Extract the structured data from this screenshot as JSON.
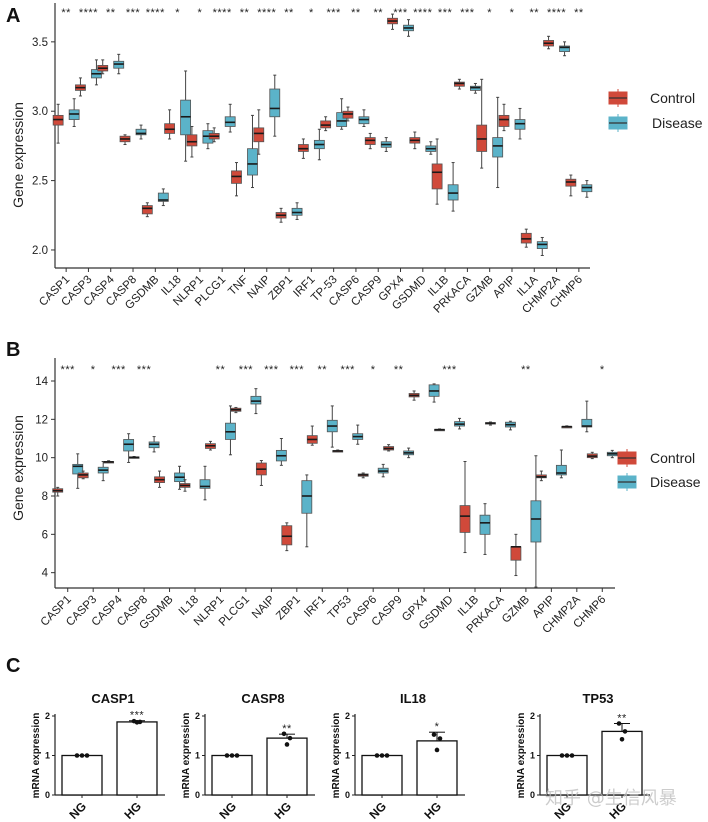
{
  "colors": {
    "control": "#d0493a",
    "disease": "#5bb3c9",
    "median": "#1a1a1a",
    "whisker": "#444444"
  },
  "legend": {
    "control_label": "Control",
    "disease_label": "Disease"
  },
  "watermark": "知乎 @生信风暴",
  "chart_data": [
    {
      "panel": "A",
      "type": "boxplot",
      "ylabel": "Gene expression",
      "ylim": [
        1.87,
        3.78
      ],
      "yticks": [
        2.0,
        2.5,
        3.0,
        3.5
      ],
      "ytick_labels": [
        "2.0",
        "2.5",
        "3.0",
        "3.5"
      ],
      "legend_position": "right",
      "series_names": [
        "Control",
        "Disease"
      ],
      "categories": [
        "CASP1",
        "CASP3",
        "CASP4",
        "CASP8",
        "GSDMB",
        "IL18",
        "NLRP1",
        "PLCG1",
        "TNF",
        "NAIP",
        "ZBP1",
        "IRF1",
        "TP-53",
        "CASP6",
        "CASP9",
        "GPX4",
        "GSDMD",
        "IL1B",
        "PRKACA",
        "GZMB",
        "APIP",
        "IL1A",
        "CHMP2A",
        "CHMP6"
      ],
      "significance": [
        "**",
        "****",
        "**",
        "***",
        "****",
        "*",
        "*",
        "****",
        "**",
        "****",
        "**",
        "*",
        "***",
        "**",
        "**",
        "***",
        "****",
        "***",
        "***",
        "*",
        "*",
        "**",
        "****",
        "**"
      ],
      "control": [
        {
          "min": 2.77,
          "q1": 2.9,
          "median": 2.94,
          "q3": 2.97,
          "max": 3.05
        },
        {
          "min": 3.11,
          "q1": 3.15,
          "median": 3.17,
          "q3": 3.19,
          "max": 3.24
        },
        {
          "min": 3.27,
          "q1": 3.29,
          "median": 3.31,
          "q3": 3.33,
          "max": 3.37
        },
        {
          "min": 2.76,
          "q1": 2.78,
          "median": 2.8,
          "q3": 2.82,
          "max": 2.83
        },
        {
          "min": 2.24,
          "q1": 2.26,
          "median": 2.3,
          "q3": 2.32,
          "max": 2.34
        },
        {
          "min": 2.8,
          "q1": 2.84,
          "median": 2.87,
          "q3": 2.91,
          "max": 3.01
        },
        {
          "min": 2.67,
          "q1": 2.75,
          "median": 2.78,
          "q3": 2.83,
          "max": 2.89
        },
        {
          "min": 2.78,
          "q1": 2.8,
          "median": 2.82,
          "q3": 2.84,
          "max": 2.88
        },
        {
          "min": 2.39,
          "q1": 2.48,
          "median": 2.53,
          "q3": 2.57,
          "max": 2.63
        },
        {
          "min": 2.69,
          "q1": 2.78,
          "median": 2.84,
          "q3": 2.88,
          "max": 3.01
        },
        {
          "min": 2.2,
          "q1": 2.23,
          "median": 2.25,
          "q3": 2.27,
          "max": 2.3
        },
        {
          "min": 2.66,
          "q1": 2.71,
          "median": 2.73,
          "q3": 2.76,
          "max": 2.8
        },
        {
          "min": 2.86,
          "q1": 2.88,
          "median": 2.9,
          "q3": 2.93,
          "max": 2.96
        },
        {
          "min": 2.93,
          "q1": 2.95,
          "median": 2.98,
          "q3": 3.0,
          "max": 3.03
        },
        {
          "min": 2.73,
          "q1": 2.76,
          "median": 2.79,
          "q3": 2.81,
          "max": 2.84
        },
        {
          "min": 3.59,
          "q1": 3.63,
          "median": 3.65,
          "q3": 3.67,
          "max": 3.7
        },
        {
          "min": 2.73,
          "q1": 2.77,
          "median": 2.79,
          "q3": 2.81,
          "max": 2.85
        },
        {
          "min": 2.33,
          "q1": 2.44,
          "median": 2.56,
          "q3": 2.62,
          "max": 2.8
        },
        {
          "min": 3.16,
          "q1": 3.18,
          "median": 3.2,
          "q3": 3.21,
          "max": 3.23
        },
        {
          "min": 2.59,
          "q1": 2.71,
          "median": 2.8,
          "q3": 2.9,
          "max": 3.23
        },
        {
          "min": 2.86,
          "q1": 2.89,
          "median": 2.94,
          "q3": 2.97,
          "max": 3.05
        },
        {
          "min": 2.02,
          "q1": 2.05,
          "median": 2.08,
          "q3": 2.12,
          "max": 2.15
        },
        {
          "min": 3.45,
          "q1": 3.47,
          "median": 3.49,
          "q3": 3.51,
          "max": 3.54
        },
        {
          "min": 2.39,
          "q1": 2.46,
          "median": 2.49,
          "q3": 2.51,
          "max": 2.54
        }
      ],
      "disease": [
        {
          "min": 2.89,
          "q1": 2.94,
          "median": 2.98,
          "q3": 3.01,
          "max": 3.09
        },
        {
          "min": 3.19,
          "q1": 3.24,
          "median": 3.27,
          "q3": 3.3,
          "max": 3.37
        },
        {
          "min": 3.27,
          "q1": 3.31,
          "median": 3.34,
          "q3": 3.36,
          "max": 3.41
        },
        {
          "min": 2.8,
          "q1": 2.83,
          "median": 2.84,
          "q3": 2.87,
          "max": 2.9
        },
        {
          "min": 2.32,
          "q1": 2.35,
          "median": 2.36,
          "q3": 2.41,
          "max": 2.44
        },
        {
          "min": 2.64,
          "q1": 2.83,
          "median": 2.96,
          "q3": 3.08,
          "max": 3.29
        },
        {
          "min": 2.73,
          "q1": 2.77,
          "median": 2.82,
          "q3": 2.86,
          "max": 2.91
        },
        {
          "min": 2.85,
          "q1": 2.89,
          "median": 2.92,
          "q3": 2.96,
          "max": 3.05
        },
        {
          "min": 2.45,
          "q1": 2.54,
          "median": 2.62,
          "q3": 2.73,
          "max": 2.97
        },
        {
          "min": 2.82,
          "q1": 2.96,
          "median": 3.02,
          "q3": 3.16,
          "max": 3.26
        },
        {
          "min": 2.22,
          "q1": 2.25,
          "median": 2.27,
          "q3": 2.3,
          "max": 2.34
        },
        {
          "min": 2.65,
          "q1": 2.73,
          "median": 2.76,
          "q3": 2.79,
          "max": 2.87
        },
        {
          "min": 2.87,
          "q1": 2.89,
          "median": 2.93,
          "q3": 2.99,
          "max": 3.09
        },
        {
          "min": 2.89,
          "q1": 2.91,
          "median": 2.94,
          "q3": 2.96,
          "max": 3.01
        },
        {
          "min": 2.71,
          "q1": 2.74,
          "median": 2.76,
          "q3": 2.78,
          "max": 2.81
        },
        {
          "min": 3.54,
          "q1": 3.58,
          "median": 3.6,
          "q3": 3.62,
          "max": 3.66
        },
        {
          "min": 2.69,
          "q1": 2.71,
          "median": 2.73,
          "q3": 2.75,
          "max": 2.78
        },
        {
          "min": 2.28,
          "q1": 2.36,
          "median": 2.41,
          "q3": 2.47,
          "max": 2.63
        },
        {
          "min": 3.13,
          "q1": 3.15,
          "median": 3.17,
          "q3": 3.18,
          "max": 3.2
        },
        {
          "min": 2.45,
          "q1": 2.67,
          "median": 2.75,
          "q3": 2.81,
          "max": 3.1
        },
        {
          "min": 2.8,
          "q1": 2.87,
          "median": 2.91,
          "q3": 2.94,
          "max": 3.02
        },
        {
          "min": 1.96,
          "q1": 2.01,
          "median": 2.04,
          "q3": 2.06,
          "max": 2.09
        },
        {
          "min": 3.4,
          "q1": 3.43,
          "median": 3.46,
          "q3": 3.47,
          "max": 3.5
        },
        {
          "min": 2.38,
          "q1": 2.42,
          "median": 2.45,
          "q3": 2.47,
          "max": 2.5
        }
      ]
    },
    {
      "panel": "B",
      "type": "boxplot",
      "ylabel": "Gene expression",
      "ylim": [
        3.2,
        15.2
      ],
      "yticks": [
        4,
        6,
        8,
        10,
        12,
        14
      ],
      "ytick_labels": [
        "4",
        "6",
        "8",
        "10",
        "12",
        "14"
      ],
      "legend_position": "right",
      "series_names": [
        "Control",
        "Disease"
      ],
      "categories": [
        "CASP1",
        "CASP3",
        "CASP4",
        "CASP8",
        "GSDMB",
        "IL18",
        "NLRP1",
        "PLCG1",
        "NAIP",
        "ZBP1",
        "IRF1",
        "TP53",
        "CASP6",
        "CASP9",
        "GPX4",
        "GSDMD",
        "IL1B",
        "PRKACA",
        "GZMB",
        "APIP",
        "CHMP2A",
        "CHMP6"
      ],
      "significance": [
        "***",
        "*",
        "***",
        "***",
        "",
        "",
        "**",
        "***",
        "***",
        "***",
        "**",
        "***",
        "*",
        "**",
        "",
        "***",
        "",
        "",
        "**",
        "",
        "",
        "*"
      ],
      "control": [
        {
          "min": 8.0,
          "q1": 8.2,
          "median": 8.28,
          "q3": 8.38,
          "max": 8.45
        },
        {
          "min": 8.9,
          "q1": 8.95,
          "median": 9.1,
          "q3": 9.2,
          "max": 9.3
        },
        {
          "min": 9.74,
          "q1": 9.76,
          "median": 9.78,
          "q3": 9.8,
          "max": 9.84
        },
        {
          "min": 9.98,
          "q1": 10.0,
          "median": 10.02,
          "q3": 10.04,
          "max": 10.06
        },
        {
          "min": 8.45,
          "q1": 8.7,
          "median": 8.85,
          "q3": 9.0,
          "max": 9.3
        },
        {
          "min": 8.25,
          "q1": 8.45,
          "median": 8.55,
          "q3": 8.65,
          "max": 8.85
        },
        {
          "min": 10.4,
          "q1": 10.48,
          "median": 10.62,
          "q3": 10.73,
          "max": 10.85
        },
        {
          "min": 12.35,
          "q1": 12.42,
          "median": 12.5,
          "q3": 12.58,
          "max": 12.62
        },
        {
          "min": 8.55,
          "q1": 9.1,
          "median": 9.4,
          "q3": 9.72,
          "max": 9.85
        },
        {
          "min": 5.15,
          "q1": 5.45,
          "median": 5.9,
          "q3": 6.45,
          "max": 6.6
        },
        {
          "min": 10.65,
          "q1": 10.75,
          "median": 10.95,
          "q3": 11.15,
          "max": 11.65
        },
        {
          "min": 10.3,
          "q1": 10.33,
          "median": 10.35,
          "q3": 10.37,
          "max": 10.4
        },
        {
          "min": 8.95,
          "q1": 9.03,
          "median": 9.1,
          "q3": 9.15,
          "max": 9.2
        },
        {
          "min": 10.35,
          "q1": 10.4,
          "median": 10.48,
          "q3": 10.58,
          "max": 10.68
        },
        {
          "min": 13.0,
          "q1": 13.17,
          "median": 13.25,
          "q3": 13.35,
          "max": 13.48
        },
        {
          "min": 11.42,
          "q1": 11.44,
          "median": 11.46,
          "q3": 11.48,
          "max": 11.5
        },
        {
          "min": 5.05,
          "q1": 6.1,
          "median": 6.95,
          "q3": 7.5,
          "max": 9.8
        },
        {
          "min": 11.7,
          "q1": 11.78,
          "median": 11.8,
          "q3": 11.83,
          "max": 11.86
        },
        {
          "min": 3.85,
          "q1": 4.65,
          "median": 5.35,
          "q3": 5.35,
          "max": 6.0
        },
        {
          "min": 8.8,
          "q1": 8.95,
          "median": 9.0,
          "q3": 9.1,
          "max": 9.3
        },
        {
          "min": 11.58,
          "q1": 11.6,
          "median": 11.62,
          "q3": 11.63,
          "max": 11.66
        },
        {
          "min": 9.95,
          "q1": 10.0,
          "median": 10.08,
          "q3": 10.2,
          "max": 10.28
        }
      ],
      "disease": [
        {
          "min": 8.4,
          "q1": 9.15,
          "median": 9.55,
          "q3": 9.65,
          "max": 10.2
        },
        {
          "min": 8.8,
          "q1": 9.2,
          "median": 9.35,
          "q3": 9.5,
          "max": 9.8
        },
        {
          "min": 9.75,
          "q1": 10.35,
          "median": 10.7,
          "q3": 10.95,
          "max": 11.25
        },
        {
          "min": 10.3,
          "q1": 10.52,
          "median": 10.7,
          "q3": 10.82,
          "max": 11.1
        },
        {
          "min": 8.35,
          "q1": 8.75,
          "median": 8.98,
          "q3": 9.2,
          "max": 9.55
        },
        {
          "min": 7.8,
          "q1": 8.4,
          "median": 8.5,
          "q3": 8.85,
          "max": 9.55
        },
        {
          "min": 10.15,
          "q1": 10.95,
          "median": 11.35,
          "q3": 11.8,
          "max": 12.7
        },
        {
          "min": 12.3,
          "q1": 12.8,
          "median": 12.95,
          "q3": 13.2,
          "max": 13.6
        },
        {
          "min": 9.6,
          "q1": 9.83,
          "median": 10.1,
          "q3": 10.38,
          "max": 11.0
        },
        {
          "min": 5.35,
          "q1": 7.1,
          "median": 8.0,
          "q3": 8.8,
          "max": 9.1
        },
        {
          "min": 10.55,
          "q1": 11.35,
          "median": 11.65,
          "q3": 11.95,
          "max": 12.7
        },
        {
          "min": 10.7,
          "q1": 10.95,
          "median": 11.1,
          "q3": 11.25,
          "max": 11.7
        },
        {
          "min": 9.0,
          "q1": 9.2,
          "median": 9.3,
          "q3": 9.45,
          "max": 9.65
        },
        {
          "min": 10.0,
          "q1": 10.15,
          "median": 10.25,
          "q3": 10.35,
          "max": 10.5
        },
        {
          "min": 12.9,
          "q1": 13.2,
          "median": 13.48,
          "q3": 13.8,
          "max": 13.85
        },
        {
          "min": 11.5,
          "q1": 11.65,
          "median": 11.75,
          "q3": 11.88,
          "max": 12.05
        },
        {
          "min": 4.95,
          "q1": 6.0,
          "median": 6.6,
          "q3": 7.0,
          "max": 7.6
        },
        {
          "min": 11.45,
          "q1": 11.6,
          "median": 11.72,
          "q3": 11.85,
          "max": 11.9
        },
        {
          "min": 3.25,
          "q1": 5.6,
          "median": 6.8,
          "q3": 7.75,
          "max": 10.1
        },
        {
          "min": 8.95,
          "q1": 9.1,
          "median": 9.2,
          "q3": 9.6,
          "max": 10.4
        },
        {
          "min": 11.35,
          "q1": 11.6,
          "median": 11.65,
          "q3": 12.0,
          "max": 12.95
        },
        {
          "min": 10.0,
          "q1": 10.1,
          "median": 10.2,
          "q3": 10.28,
          "max": 10.38
        }
      ]
    },
    {
      "panel": "C",
      "type": "bar",
      "ylabel": "mRNA expression",
      "ylim": [
        0,
        2
      ],
      "yticks": [
        0,
        1,
        2
      ],
      "ytick_labels": [
        "0",
        "1",
        "2"
      ],
      "charts": [
        {
          "title": "CASP1",
          "categories": [
            "NG",
            "HG"
          ],
          "values": [
            1.0,
            1.85
          ],
          "errors": [
            0,
            0.03
          ],
          "points": [
            [
              1.0,
              1.0,
              1.0
            ],
            [
              1.84,
              1.85,
              1.87
            ]
          ],
          "significance": "***"
        },
        {
          "title": "CASP8",
          "categories": [
            "NG",
            "HG"
          ],
          "values": [
            1.0,
            1.44
          ],
          "errors": [
            0,
            0.1
          ],
          "points": [
            [
              1.0,
              1.0,
              1.0
            ],
            [
              1.28,
              1.44,
              1.55
            ]
          ],
          "significance": "**"
        },
        {
          "title": "IL18",
          "categories": [
            "NG",
            "HG"
          ],
          "values": [
            1.0,
            1.37
          ],
          "errors": [
            0,
            0.22
          ],
          "points": [
            [
              1.0,
              1.0,
              1.0
            ],
            [
              1.14,
              1.43,
              1.53
            ]
          ],
          "significance": "*"
        },
        {
          "title": "TP53",
          "categories": [
            "NG",
            "HG"
          ],
          "values": [
            1.0,
            1.61
          ],
          "errors": [
            0,
            0.2
          ],
          "points": [
            [
              1.0,
              1.0,
              1.0
            ],
            [
              1.41,
              1.61,
              1.81
            ]
          ],
          "significance": "**"
        }
      ]
    }
  ]
}
